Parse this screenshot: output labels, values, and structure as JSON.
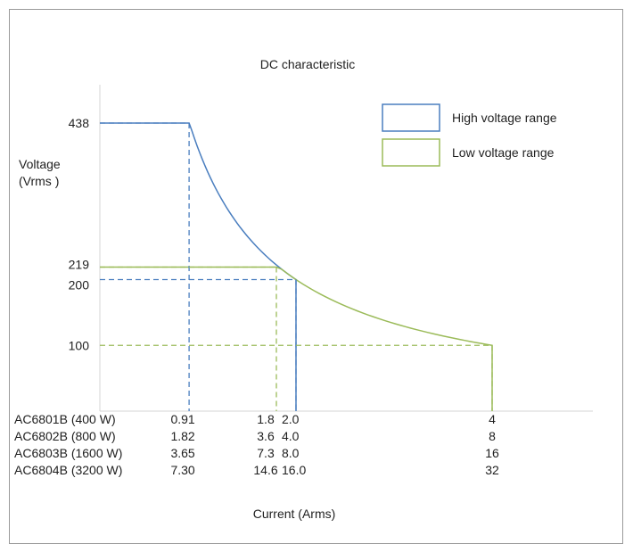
{
  "chart_data": {
    "type": "line",
    "title": "DC characteristic",
    "xlabel": "Current (Arms)",
    "ylabel": [
      "Voltage",
      "(Vrms )"
    ],
    "y_ticks": [
      "438",
      "219",
      "200",
      "100"
    ],
    "models": [
      {
        "name": "AC6801B (400 W)",
        "ticks": [
          "0.91",
          "1.8",
          "2.0",
          "4"
        ]
      },
      {
        "name": "AC6802B (800 W)",
        "ticks": [
          "1.82",
          "3.6",
          "4.0",
          "8"
        ]
      },
      {
        "name": "AC6803B (1600 W)",
        "ticks": [
          "3.65",
          "7.3",
          "8.0",
          "16"
        ]
      },
      {
        "name": "AC6804B (3200 W)",
        "ticks": [
          "7.30",
          "14.6",
          "16.0",
          "32"
        ]
      }
    ],
    "x_reference_model": "AC6801B (400 W)",
    "xlim": [
      0,
      5
    ],
    "ylim": [
      0,
      500
    ],
    "series": [
      {
        "name": "High voltage range",
        "color": "#4a7ebf",
        "power_limit_w": 400,
        "max_voltage": 438,
        "max_current": 2.0,
        "points": [
          [
            0,
            438
          ],
          [
            0.91,
            438
          ],
          [
            2.0,
            200
          ],
          [
            2.0,
            0
          ]
        ]
      },
      {
        "name": "Low voltage range",
        "color": "#9bbb59",
        "power_limit_w": 400,
        "max_voltage": 219,
        "max_current": 4.0,
        "points": [
          [
            0,
            219
          ],
          [
            1.8,
            219
          ],
          [
            4.0,
            100
          ],
          [
            4.0,
            0
          ]
        ]
      }
    ],
    "reference_lines": [
      {
        "series": "High voltage range",
        "x": 0.91,
        "y": 438
      },
      {
        "series": "High voltage range",
        "x": 2.0,
        "y": 200
      },
      {
        "series": "Low voltage range",
        "x": 1.8,
        "y": 219
      },
      {
        "series": "Low voltage range",
        "x": 4.0,
        "y": 100
      }
    ],
    "legend_position": "top-right",
    "grid": false
  }
}
